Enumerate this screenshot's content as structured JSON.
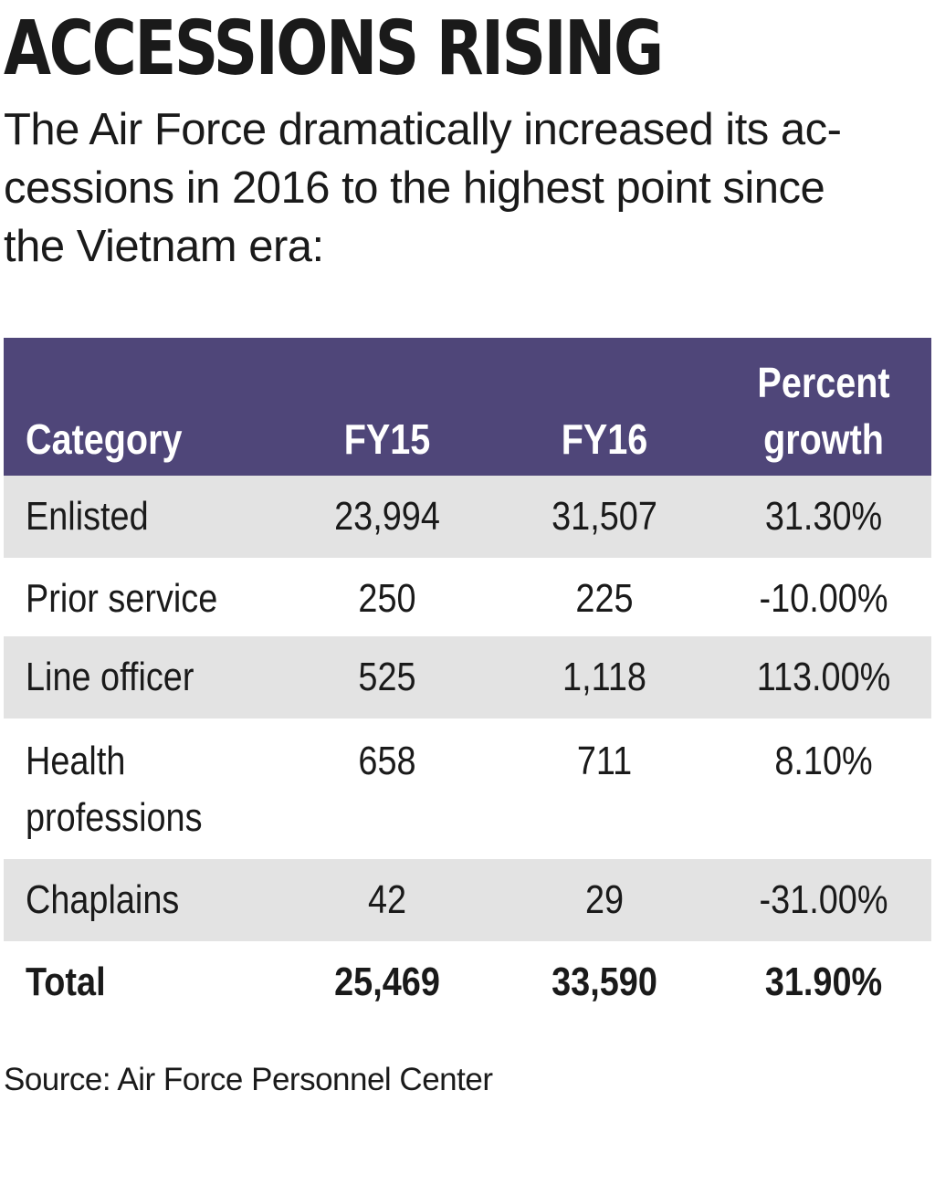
{
  "title": "ACCESSIONS RISING",
  "subtitle": "The Air Force dramatically increased its ac-\ncessions in 2016 to the highest point since\nthe Vietnam era:",
  "source": "Source: Air Force Personnel Center",
  "colors": {
    "header_bg": "#4f4679",
    "header_text": "#ffffff",
    "row_shade": "#e3e3e3",
    "text": "#1a1a1a"
  },
  "chart_data": {
    "type": "table",
    "title": "ACCESSIONS RISING",
    "subtitle": "The Air Force dramatically increased its accessions in 2016 to the highest point since the Vietnam era:",
    "columns": [
      "Category",
      "FY15",
      "FY16",
      "Percent growth"
    ],
    "rows": [
      {
        "category": "Enlisted",
        "fy15": "23,994",
        "fy16": "31,507",
        "growth": "31.30%"
      },
      {
        "category": "Prior service",
        "fy15": "250",
        "fy16": "225",
        "growth": "-10.00%"
      },
      {
        "category": "Line officer",
        "fy15": "525",
        "fy16": "1,118",
        "growth": "113.00%"
      },
      {
        "category": "Health professions",
        "fy15": "658",
        "fy16": "711",
        "growth": "8.10%"
      },
      {
        "category": "Chaplains",
        "fy15": "42",
        "fy16": "29",
        "growth": "-31.00%"
      }
    ],
    "total": {
      "category": "Total",
      "fy15": "25,469",
      "fy16": "33,590",
      "growth": "31.90%"
    },
    "source": "Source: Air Force Personnel Center"
  }
}
